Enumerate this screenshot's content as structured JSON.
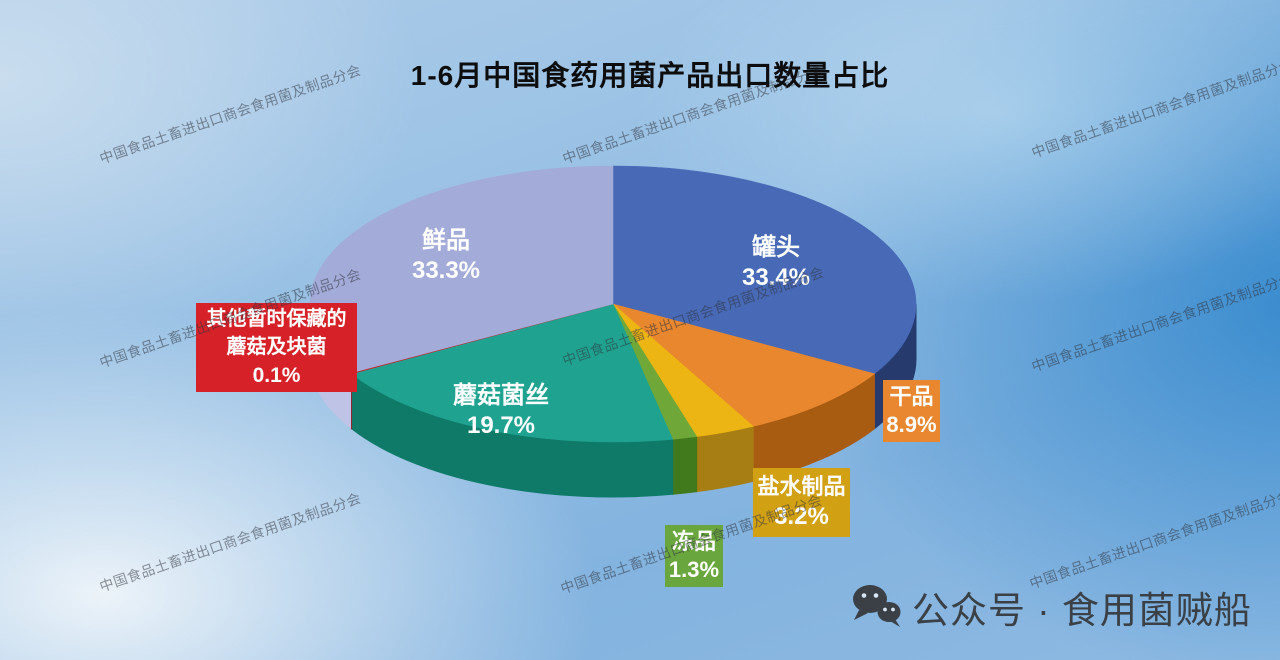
{
  "title": "1-6月中国食药用菌产品出口数量占比",
  "watermark": {
    "text": "中国食品土畜进出口商会食用菌及制品分会"
  },
  "footer": {
    "wechat_label": "公众号 · 食用菌贼船"
  },
  "chart_data": {
    "type": "pie",
    "projection": "3d",
    "title": "1-6月中国食药用菌产品出口数量占比",
    "unit": "%",
    "start_angle_deg": 0,
    "direction": "clockwise",
    "legend": "none, labels on slices and callout boxes",
    "slices": [
      {
        "key": "canned",
        "label": "罐头",
        "value": 33.4,
        "pct_text": "33.4%",
        "color": "#4769b6",
        "side_color": "#263a6e"
      },
      {
        "key": "dried",
        "label": "干品",
        "value": 8.9,
        "pct_text": "8.9%",
        "color": "#e8872e",
        "side_color": "#a85c12"
      },
      {
        "key": "brine",
        "label": "盐水制品",
        "value": 3.2,
        "pct_text": "3.2%",
        "color": "#edb513",
        "side_color": "#a67e14"
      },
      {
        "key": "frozen",
        "label": "冻品",
        "value": 1.3,
        "pct_text": "1.3%",
        "color": "#6fa738",
        "side_color": "#41791d"
      },
      {
        "key": "mycelium",
        "label": "蘑菇菌丝",
        "value": 19.7,
        "pct_text": "19.7%",
        "color": "#1fa390",
        "side_color": "#0f7a68"
      },
      {
        "key": "other",
        "label": "其他暂时保藏的蘑菇及块菌",
        "value": 0.1,
        "pct_text": "0.1%",
        "color": "#cc2127",
        "side_color": "#8f161b"
      },
      {
        "key": "fresh",
        "label": "鲜品",
        "value": 33.3,
        "pct_text": "33.3%",
        "color": "#a3abd8",
        "side_color": "#bfc3e6"
      }
    ]
  }
}
